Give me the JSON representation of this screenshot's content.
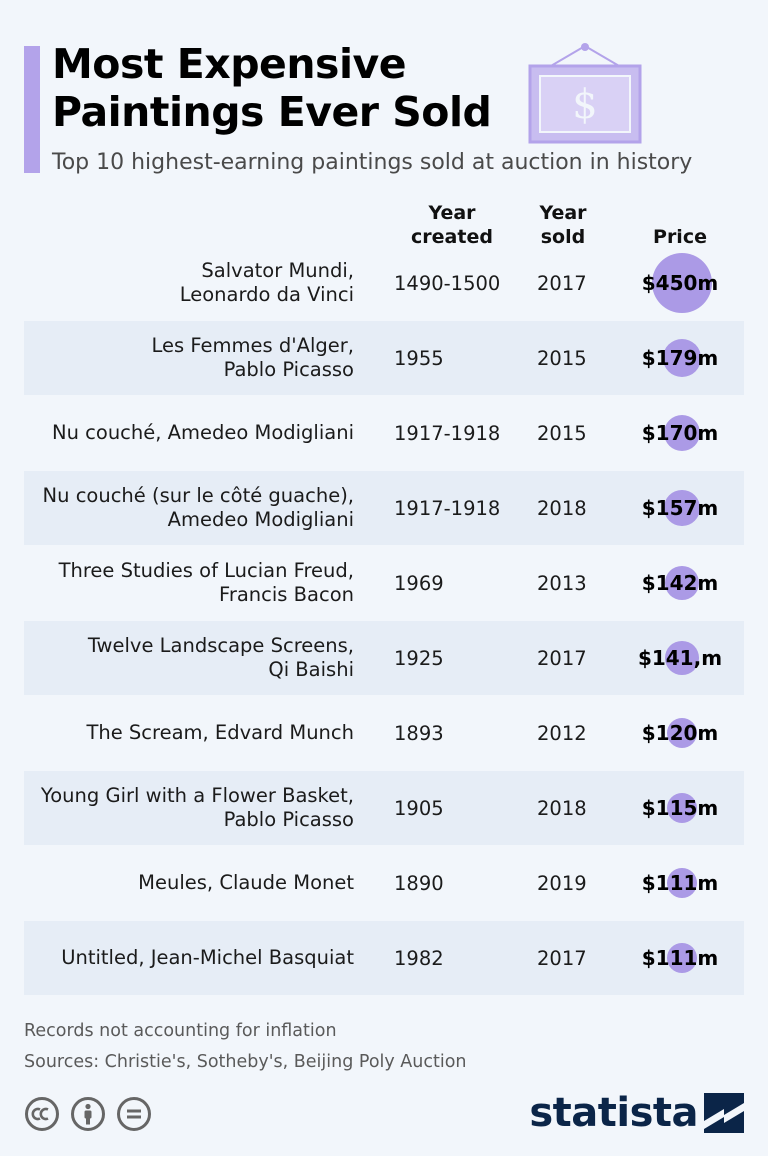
{
  "header": {
    "title_line1": "Most Expensive",
    "title_line2": "Paintings Ever Sold",
    "subtitle": "Top 10 highest-earning paintings sold at auction in history",
    "frame_symbol": "$"
  },
  "columns": {
    "year_created_1": "Year",
    "year_created_2": "created",
    "year_sold_1": "Year",
    "year_sold_2": "sold",
    "price": "Price"
  },
  "chart_data": {
    "type": "table",
    "unit": "m",
    "rows": [
      {
        "line1": "Salvator Mundi,",
        "line2": "Leonardo da Vinci",
        "created": "1490-1500",
        "sold": "2017",
        "price": "$450m",
        "value": 450
      },
      {
        "line1": "Les Femmes d'Alger,",
        "line2": "Pablo Picasso",
        "created": "1955",
        "sold": "2015",
        "price": "$179m",
        "value": 179
      },
      {
        "line1": "Nu couché, Amedeo Modigliani",
        "line2": "",
        "created": "1917-1918",
        "sold": "2015",
        "price": "$170m",
        "value": 170
      },
      {
        "line1": "Nu couché (sur le côté guache),",
        "line2": "Amedeo Modigliani",
        "created": "1917-1918",
        "sold": "2018",
        "price": "$157m",
        "value": 157
      },
      {
        "line1": "Three Studies of Lucian Freud,",
        "line2": "Francis Bacon",
        "created": "1969",
        "sold": "2013",
        "price": "$142m",
        "value": 142
      },
      {
        "line1": "Twelve Landscape Screens,",
        "line2": "Qi Baishi",
        "created": "1925",
        "sold": "2017",
        "price": "$141,m",
        "value": 141
      },
      {
        "line1": "The Scream, Edvard Munch",
        "line2": "",
        "created": "1893",
        "sold": "2012",
        "price": "$120m",
        "value": 120
      },
      {
        "line1": "Young Girl with a Flower Basket,",
        "line2": "Pablo Picasso",
        "created": "1905",
        "sold": "2018",
        "price": "$115m",
        "value": 115
      },
      {
        "line1": "Meules, Claude Monet",
        "line2": "",
        "created": "1890",
        "sold": "2019",
        "price": "$111m",
        "value": 111
      },
      {
        "line1": "Untitled, Jean-Michel Basquiat",
        "line2": "",
        "created": "1982",
        "sold": "2017",
        "price": "$111m",
        "value": 111
      }
    ]
  },
  "footer": {
    "note": "Records not accounting for inflation",
    "sources": "Sources: Christie's, Sotheby's, Beijing Poly Auction",
    "brand": "statista",
    "license_icons": [
      "cc-icon",
      "attribution-icon",
      "no-derivatives-icon"
    ]
  },
  "colors": {
    "accent": "#b3a3ea",
    "bubble": "#ab9ae6",
    "row_shade": "#e6edf6",
    "brand": "#0b2548"
  }
}
